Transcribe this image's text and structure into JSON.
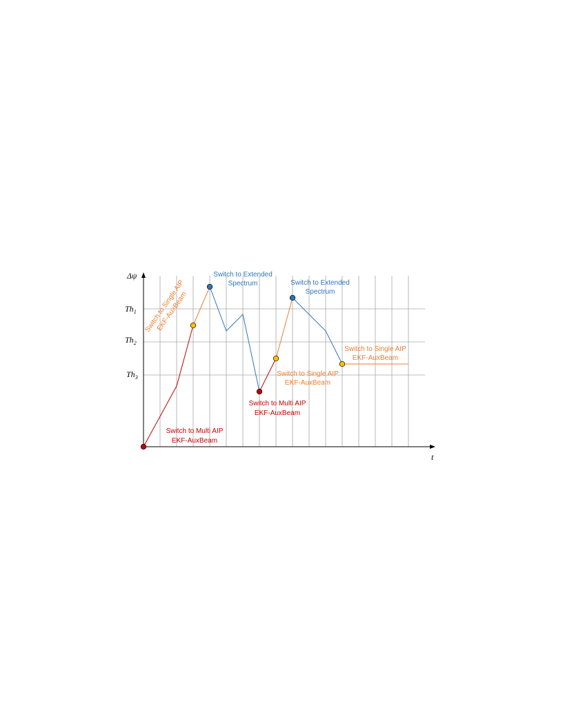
{
  "colors": {
    "red": "#c00000",
    "orange": "#ed7d31",
    "blue": "#2e75b6",
    "yellow_marker": "#ffc000",
    "grid": "#a6a6a6"
  },
  "axes": {
    "y_symbol": "Δψ",
    "x_symbol": "t"
  },
  "thresholds": [
    {
      "base": "Th",
      "sub": "1"
    },
    {
      "base": "Th",
      "sub": "2"
    },
    {
      "base": "Th",
      "sub": "3"
    }
  ],
  "annotations": {
    "single_aip_1": [
      "Switch to Single AIP",
      "EKF-AuxBeam"
    ],
    "extended_1": [
      "Switch to Extended",
      "Spectrum"
    ],
    "extended_2": [
      "Switch to Extended",
      "Spectrum"
    ],
    "multi_aip_1": [
      "Switch to Multi AIP",
      "EKF-AuxBeam"
    ],
    "multi_aip_2": [
      "Switch to Multi AIP",
      "EKF-AuxBeam"
    ],
    "single_aip_2": [
      "Switch to Single AIP",
      "EKF-AuxBeam"
    ],
    "single_aip_3": [
      "Switch to Single AIP",
      "EKF-AuxBeam"
    ]
  }
}
